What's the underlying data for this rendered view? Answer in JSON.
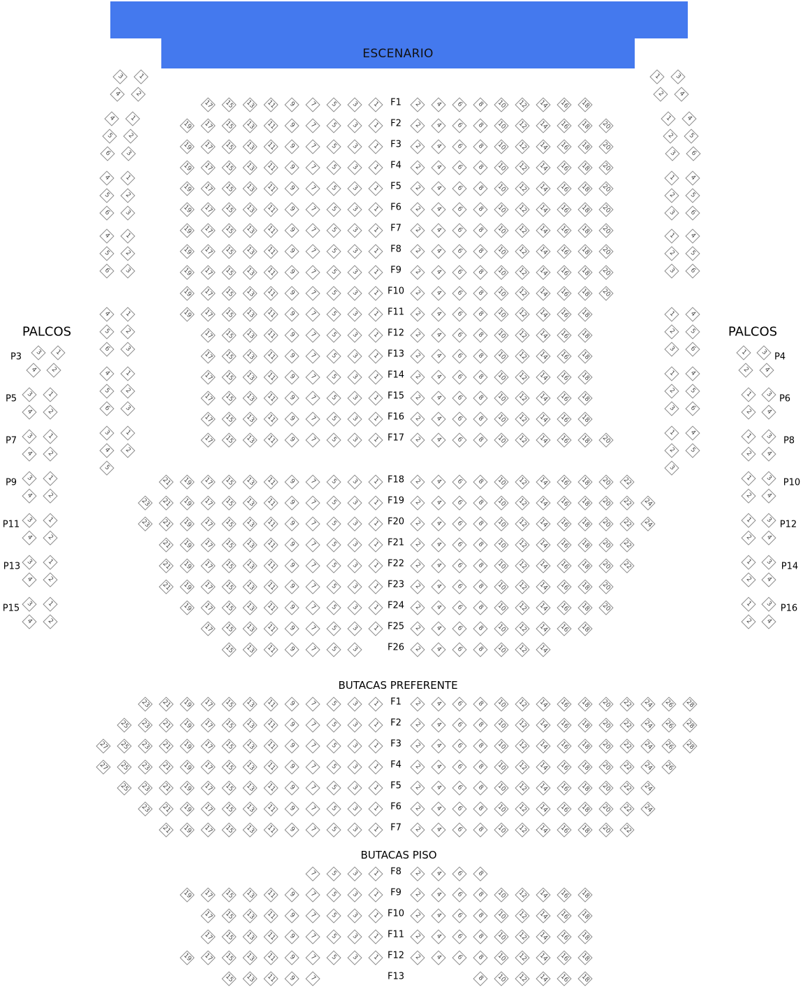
{
  "stage": {
    "label": "ESCENARIO",
    "color": "#4479ee"
  },
  "palcos_left_title": "PALCOS",
  "palcos_right_title": "PALCOS",
  "section_preferente_title": "BUTACAS PREFERENTE",
  "section_piso_title": "BUTACAS PISO",
  "platea_rows": [
    {
      "label": "F1",
      "left": [
        1,
        3,
        5,
        7,
        9,
        11,
        13,
        15,
        17
      ],
      "right": [
        2,
        4,
        6,
        8,
        10,
        12,
        14,
        16,
        18
      ]
    },
    {
      "label": "F2",
      "left": [
        1,
        3,
        5,
        7,
        9,
        11,
        13,
        15,
        17,
        19
      ],
      "right": [
        2,
        4,
        6,
        8,
        10,
        12,
        14,
        16,
        18,
        20
      ]
    },
    {
      "label": "F3",
      "left": [
        1,
        3,
        5,
        7,
        9,
        11,
        13,
        15,
        17,
        19
      ],
      "right": [
        2,
        4,
        6,
        8,
        10,
        12,
        14,
        16,
        18,
        20
      ]
    },
    {
      "label": "F4",
      "left": [
        1,
        3,
        5,
        7,
        9,
        11,
        13,
        15,
        17,
        19
      ],
      "right": [
        2,
        4,
        6,
        8,
        10,
        12,
        14,
        16,
        18,
        20
      ]
    },
    {
      "label": "F5",
      "left": [
        1,
        3,
        5,
        7,
        9,
        11,
        13,
        15,
        17,
        19
      ],
      "right": [
        2,
        4,
        6,
        8,
        10,
        12,
        14,
        16,
        18,
        20
      ]
    },
    {
      "label": "F6",
      "left": [
        1,
        3,
        5,
        7,
        9,
        11,
        13,
        15,
        17,
        19
      ],
      "right": [
        2,
        4,
        6,
        8,
        10,
        12,
        14,
        16,
        18,
        20
      ]
    },
    {
      "label": "F7",
      "left": [
        1,
        3,
        5,
        7,
        9,
        11,
        13,
        15,
        17,
        19
      ],
      "right": [
        2,
        4,
        6,
        8,
        10,
        12,
        14,
        16,
        18,
        20
      ]
    },
    {
      "label": "F8",
      "left": [
        1,
        3,
        5,
        7,
        9,
        11,
        13,
        15,
        17,
        19
      ],
      "right": [
        2,
        4,
        6,
        8,
        10,
        12,
        14,
        16,
        18,
        20
      ]
    },
    {
      "label": "F9",
      "left": [
        1,
        3,
        5,
        7,
        9,
        11,
        13,
        15,
        17,
        19
      ],
      "right": [
        2,
        4,
        6,
        8,
        10,
        12,
        14,
        16,
        18,
        20
      ]
    },
    {
      "label": "F10",
      "left": [
        1,
        3,
        5,
        7,
        9,
        11,
        13,
        15,
        17,
        19
      ],
      "right": [
        2,
        4,
        6,
        8,
        10,
        12,
        14,
        16,
        18,
        20
      ]
    },
    {
      "label": "F11",
      "left": [
        1,
        3,
        5,
        7,
        9,
        11,
        13,
        15,
        17,
        19
      ],
      "right": [
        2,
        4,
        6,
        8,
        10,
        12,
        14,
        16,
        18
      ]
    },
    {
      "label": "F12",
      "left": [
        1,
        3,
        5,
        7,
        9,
        11,
        13,
        15,
        17
      ],
      "right": [
        2,
        4,
        6,
        8,
        10,
        12,
        14,
        16,
        18
      ]
    },
    {
      "label": "F13",
      "left": [
        1,
        3,
        5,
        7,
        9,
        11,
        13,
        15,
        17
      ],
      "right": [
        2,
        4,
        6,
        8,
        10,
        12,
        14,
        16,
        18
      ]
    },
    {
      "label": "F14",
      "left": [
        1,
        3,
        5,
        7,
        9,
        11,
        13,
        15,
        17
      ],
      "right": [
        2,
        4,
        6,
        8,
        10,
        12,
        14,
        16,
        18
      ]
    },
    {
      "label": "F15",
      "left": [
        1,
        3,
        5,
        7,
        9,
        11,
        13,
        15,
        17
      ],
      "right": [
        2,
        4,
        6,
        8,
        10,
        12,
        14,
        16,
        18
      ]
    },
    {
      "label": "F16",
      "left": [
        1,
        3,
        5,
        7,
        9,
        11,
        13,
        15,
        17
      ],
      "right": [
        2,
        4,
        6,
        8,
        10,
        12,
        14,
        16,
        18
      ]
    },
    {
      "label": "F17",
      "left": [
        1,
        3,
        5,
        7,
        9,
        11,
        13,
        15,
        17
      ],
      "right": [
        2,
        4,
        6,
        8,
        10,
        12,
        14,
        16,
        18,
        20
      ]
    },
    {
      "label": "F18",
      "left": [
        1,
        3,
        5,
        7,
        9,
        11,
        13,
        15,
        17,
        19,
        21
      ],
      "right": [
        2,
        4,
        6,
        8,
        10,
        12,
        14,
        16,
        18,
        20,
        22
      ]
    },
    {
      "label": "F19",
      "left": [
        1,
        3,
        5,
        7,
        9,
        11,
        13,
        15,
        17,
        19,
        21,
        23
      ],
      "right": [
        2,
        4,
        6,
        8,
        10,
        12,
        14,
        16,
        18,
        20,
        22,
        24
      ]
    },
    {
      "label": "F20",
      "left": [
        1,
        3,
        5,
        7,
        9,
        11,
        13,
        15,
        17,
        19,
        21,
        23
      ],
      "right": [
        2,
        4,
        6,
        8,
        10,
        12,
        14,
        16,
        18,
        20,
        22,
        24
      ]
    },
    {
      "label": "F21",
      "left": [
        1,
        3,
        5,
        7,
        9,
        11,
        13,
        15,
        17,
        19,
        21
      ],
      "right": [
        2,
        4,
        6,
        8,
        10,
        12,
        14,
        16,
        18,
        20,
        22
      ]
    },
    {
      "label": "F22",
      "left": [
        1,
        3,
        5,
        7,
        9,
        11,
        13,
        15,
        17,
        19,
        21
      ],
      "right": [
        2,
        4,
        6,
        8,
        10,
        12,
        14,
        16,
        18,
        20,
        22
      ]
    },
    {
      "label": "F23",
      "left": [
        1,
        3,
        5,
        7,
        9,
        11,
        13,
        15,
        17,
        19,
        21
      ],
      "right": [
        2,
        4,
        6,
        8,
        10,
        12,
        14,
        16,
        18,
        20
      ]
    },
    {
      "label": "F24",
      "left": [
        1,
        3,
        5,
        7,
        9,
        11,
        13,
        15,
        17,
        19
      ],
      "right": [
        2,
        4,
        6,
        8,
        10,
        12,
        14,
        16,
        18,
        20
      ]
    },
    {
      "label": "F25",
      "left": [
        1,
        3,
        5,
        7,
        9,
        11,
        13,
        15,
        17
      ],
      "right": [
        2,
        4,
        6,
        8,
        10,
        12,
        14,
        16,
        18
      ]
    },
    {
      "label": "F26",
      "left": [
        3,
        5,
        7,
        9,
        11,
        13,
        15
      ],
      "right": [
        2,
        4,
        6,
        8,
        10,
        12,
        14
      ]
    }
  ],
  "preferente_rows": [
    {
      "label": "F1",
      "left": [
        1,
        3,
        5,
        7,
        9,
        11,
        13,
        15,
        17,
        19,
        21,
        23
      ],
      "right": [
        2,
        4,
        6,
        8,
        10,
        12,
        14,
        16,
        18,
        20,
        22,
        24,
        26,
        28
      ]
    },
    {
      "label": "F2",
      "left": [
        1,
        3,
        5,
        7,
        9,
        11,
        13,
        15,
        17,
        19,
        21,
        23,
        25
      ],
      "right": [
        2,
        4,
        6,
        8,
        10,
        12,
        14,
        16,
        18,
        20,
        22,
        24,
        26,
        28
      ]
    },
    {
      "label": "F3",
      "left": [
        1,
        3,
        5,
        7,
        9,
        11,
        13,
        15,
        17,
        19,
        21,
        23,
        25,
        27
      ],
      "right": [
        2,
        4,
        6,
        8,
        10,
        12,
        14,
        16,
        18,
        20,
        22,
        24,
        26,
        28
      ]
    },
    {
      "label": "F4",
      "left": [
        1,
        3,
        5,
        7,
        9,
        11,
        13,
        15,
        17,
        19,
        21,
        23,
        25,
        27
      ],
      "right": [
        2,
        4,
        6,
        8,
        10,
        12,
        14,
        16,
        18,
        20,
        22,
        24,
        26
      ]
    },
    {
      "label": "F5",
      "left": [
        1,
        3,
        5,
        7,
        9,
        11,
        13,
        15,
        17,
        19,
        21,
        23,
        25
      ],
      "right": [
        2,
        4,
        6,
        8,
        10,
        12,
        14,
        16,
        18,
        20,
        22,
        24
      ]
    },
    {
      "label": "F6",
      "left": [
        1,
        3,
        5,
        7,
        9,
        11,
        13,
        15,
        17,
        19,
        21,
        23
      ],
      "right": [
        2,
        4,
        6,
        8,
        10,
        12,
        14,
        16,
        18,
        20,
        22,
        24
      ]
    },
    {
      "label": "F7",
      "left": [
        1,
        3,
        5,
        7,
        9,
        11,
        13,
        15,
        17,
        19,
        21
      ],
      "right": [
        2,
        4,
        6,
        8,
        10,
        12,
        14,
        16,
        18,
        20,
        22
      ]
    }
  ],
  "piso_rows": [
    {
      "label": "F8",
      "left": [
        1,
        3,
        5,
        7
      ],
      "right": [
        2,
        4,
        6,
        8
      ]
    },
    {
      "label": "F9",
      "left": [
        1,
        3,
        5,
        7,
        9,
        11,
        13,
        15,
        17,
        19
      ],
      "right": [
        2,
        4,
        6,
        8,
        10,
        12,
        14,
        16,
        18
      ]
    },
    {
      "label": "F10",
      "left": [
        1,
        3,
        5,
        7,
        9,
        11,
        13,
        15,
        17
      ],
      "right": [
        2,
        4,
        6,
        8,
        10,
        12,
        14,
        16,
        18
      ]
    },
    {
      "label": "F11",
      "left": [
        1,
        3,
        5,
        7,
        9,
        11,
        13,
        15,
        17
      ],
      "right": [
        2,
        4,
        6,
        8,
        10,
        12,
        14,
        16,
        18
      ]
    },
    {
      "label": "F12",
      "left": [
        1,
        3,
        5,
        7,
        9,
        11,
        13,
        15,
        17,
        19
      ],
      "right": [
        2,
        4,
        6,
        8,
        10,
        12,
        14,
        16,
        18
      ]
    },
    {
      "label": "F13",
      "left": [
        7,
        9,
        11,
        13,
        15
      ],
      "right": [
        8,
        10,
        12,
        14,
        16,
        18
      ]
    }
  ],
  "inner_boxes_left": [
    [
      [
        3,
        1
      ],
      [
        4,
        2
      ]
    ],
    [
      [
        4,
        1
      ],
      [
        5,
        2
      ],
      [
        6,
        3
      ]
    ],
    [
      [
        4,
        1
      ],
      [
        5,
        2
      ],
      [
        6,
        3
      ]
    ],
    [
      [
        4,
        1
      ],
      [
        5,
        2
      ],
      [
        6,
        3
      ]
    ],
    [
      [
        4,
        1
      ],
      [
        5,
        2
      ],
      [
        6,
        3
      ]
    ],
    [
      [
        4,
        1
      ],
      [
        5,
        2
      ],
      [
        6,
        3
      ]
    ],
    [
      [
        3,
        1
      ],
      [
        4,
        2
      ],
      [
        5
      ]
    ]
  ],
  "inner_boxes_right": [
    [
      [
        1,
        3
      ],
      [
        2,
        4
      ]
    ],
    [
      [
        1,
        4
      ],
      [
        2,
        5
      ],
      [
        3,
        6
      ]
    ],
    [
      [
        1,
        4
      ],
      [
        2,
        5
      ],
      [
        3,
        6
      ]
    ],
    [
      [
        1,
        4
      ],
      [
        2,
        5
      ],
      [
        3,
        6
      ]
    ],
    [
      [
        1,
        4
      ],
      [
        2,
        5
      ],
      [
        3,
        6
      ]
    ],
    [
      [
        1,
        4
      ],
      [
        2,
        5
      ],
      [
        3,
        6
      ]
    ],
    [
      [
        1,
        4
      ],
      [
        2,
        5
      ],
      [
        3
      ]
    ]
  ],
  "outer_boxes_left": [
    {
      "label": "P3",
      "seats": [
        [
          3,
          1
        ],
        [
          4,
          2
        ]
      ]
    },
    {
      "label": "P5",
      "seats": [
        [
          3,
          1
        ],
        [
          4,
          2
        ]
      ]
    },
    {
      "label": "P7",
      "seats": [
        [
          3,
          1
        ],
        [
          4,
          2
        ]
      ]
    },
    {
      "label": "P9",
      "seats": [
        [
          3,
          1
        ],
        [
          4,
          2
        ]
      ]
    },
    {
      "label": "P11",
      "seats": [
        [
          3,
          1
        ],
        [
          4,
          2
        ]
      ]
    },
    {
      "label": "P13",
      "seats": [
        [
          3,
          1
        ],
        [
          4,
          2
        ]
      ]
    },
    {
      "label": "P15",
      "seats": [
        [
          3,
          1
        ],
        [
          4,
          2
        ]
      ]
    }
  ],
  "outer_boxes_right": [
    {
      "label": "P4",
      "seats": [
        [
          1,
          3
        ],
        [
          2,
          4
        ]
      ]
    },
    {
      "label": "P6",
      "seats": [
        [
          1,
          3
        ],
        [
          2,
          4
        ]
      ]
    },
    {
      "label": "P8",
      "seats": [
        [
          1,
          3
        ],
        [
          2,
          4
        ]
      ]
    },
    {
      "label": "P10",
      "seats": [
        [
          1,
          3
        ],
        [
          2,
          4
        ]
      ]
    },
    {
      "label": "P12",
      "seats": [
        [
          1,
          3
        ],
        [
          2,
          4
        ]
      ]
    },
    {
      "label": "P14",
      "seats": [
        [
          1,
          3
        ],
        [
          2,
          4
        ]
      ]
    },
    {
      "label": "P16",
      "seats": [
        [
          1,
          3
        ],
        [
          2,
          4
        ]
      ]
    }
  ]
}
